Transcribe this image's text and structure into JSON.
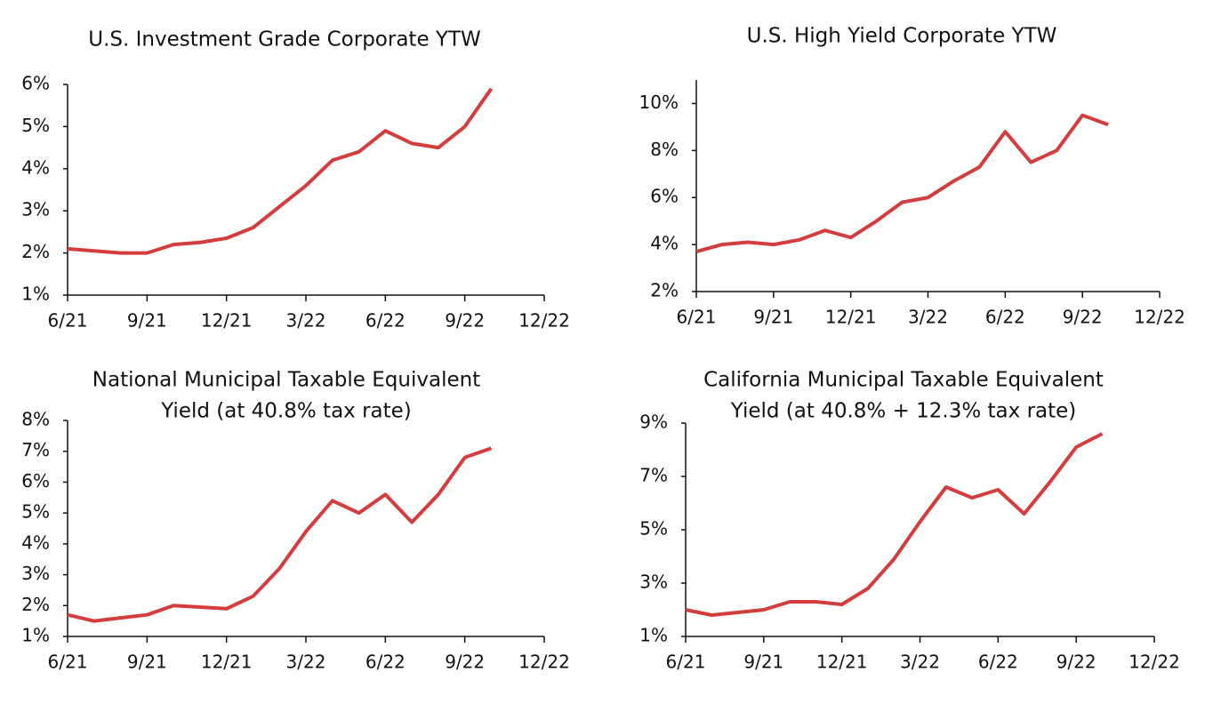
{
  "chart_data": [
    {
      "type": "line",
      "title": [
        "U.S. Investment Grade Corporate YTW"
      ],
      "x": [
        "2021-06",
        "2021-07",
        "2021-08",
        "2021-09",
        "2021-10",
        "2021-11",
        "2021-12",
        "2022-01",
        "2022-02",
        "2022-03",
        "2022-04",
        "2022-05",
        "2022-06",
        "2022-07",
        "2022-08",
        "2022-09",
        "2022-10"
      ],
      "series": [
        {
          "color": "#d43d3d",
          "values": [
            2.1,
            2.05,
            2.0,
            2.0,
            2.2,
            2.25,
            2.35,
            2.6,
            3.1,
            3.6,
            4.2,
            4.4,
            4.9,
            4.6,
            4.5,
            5.0,
            5.9
          ]
        }
      ],
      "xlim": [
        "2021-06",
        "2022-12"
      ],
      "xticks": [
        {
          "value": "2021-06",
          "label": "6/21"
        },
        {
          "value": "2021-09",
          "label": "9/21"
        },
        {
          "value": "2021-12",
          "label": "12/21"
        },
        {
          "value": "2022-03",
          "label": "3/22"
        },
        {
          "value": "2022-06",
          "label": "6/22"
        },
        {
          "value": "2022-09",
          "label": "9/22"
        },
        {
          "value": "2022-12",
          "label": "12/22"
        }
      ],
      "ylim": [
        1,
        6
      ],
      "yticks": [
        {
          "value": 1,
          "label": "1%"
        },
        {
          "value": 2,
          "label": "2%"
        },
        {
          "value": 3,
          "label": "3%"
        },
        {
          "value": 4,
          "label": "4%"
        },
        {
          "value": 5,
          "label": "5%"
        },
        {
          "value": 6,
          "label": "6%"
        }
      ]
    },
    {
      "type": "line",
      "title": [
        "U.S. High Yield Corporate YTW"
      ],
      "x": [
        "2021-06",
        "2021-07",
        "2021-08",
        "2021-09",
        "2021-10",
        "2021-11",
        "2021-12",
        "2022-01",
        "2022-02",
        "2022-03",
        "2022-04",
        "2022-05",
        "2022-06",
        "2022-07",
        "2022-08",
        "2022-09",
        "2022-10"
      ],
      "series": [
        {
          "color": "#d43d3d",
          "values": [
            3.7,
            4.0,
            4.1,
            4.0,
            4.2,
            4.6,
            4.3,
            5.0,
            5.8,
            6.0,
            6.7,
            7.3,
            8.8,
            7.5,
            8.0,
            9.5,
            9.1
          ]
        }
      ],
      "xlim": [
        "2021-06",
        "2022-12"
      ],
      "xticks": [
        {
          "value": "2021-06",
          "label": "6/21"
        },
        {
          "value": "2021-09",
          "label": "9/21"
        },
        {
          "value": "2021-12",
          "label": "12/21"
        },
        {
          "value": "2022-03",
          "label": "3/22"
        },
        {
          "value": "2022-06",
          "label": "6/22"
        },
        {
          "value": "2022-09",
          "label": "9/22"
        },
        {
          "value": "2022-12",
          "label": "12/22"
        }
      ],
      "ylim": [
        2,
        11
      ],
      "yticks": [
        {
          "value": 2,
          "label": "2%"
        },
        {
          "value": 4,
          "label": "4%"
        },
        {
          "value": 6,
          "label": "6%"
        },
        {
          "value": 8,
          "label": "8%"
        },
        {
          "value": 10,
          "label": "10%"
        }
      ]
    },
    {
      "type": "line",
      "title": [
        "National Municipal Taxable Equivalent",
        "Yield (at 40.8% tax rate)"
      ],
      "x": [
        "2021-06",
        "2021-07",
        "2021-08",
        "2021-09",
        "2021-10",
        "2021-11",
        "2021-12",
        "2022-01",
        "2022-02",
        "2022-03",
        "2022-04",
        "2022-05",
        "2022-06",
        "2022-07",
        "2022-08",
        "2022-09",
        "2022-10"
      ],
      "series": [
        {
          "color": "#d43d3d",
          "values": [
            1.7,
            1.5,
            1.6,
            1.7,
            2.0,
            1.95,
            1.9,
            2.3,
            3.2,
            4.4,
            5.4,
            5.0,
            5.6,
            4.7,
            5.6,
            6.8,
            7.1
          ]
        }
      ],
      "xlim": [
        "2021-06",
        "2022-12"
      ],
      "xticks": [
        {
          "value": "2021-06",
          "label": "6/21"
        },
        {
          "value": "2021-09",
          "label": "9/21"
        },
        {
          "value": "2021-12",
          "label": "12/21"
        },
        {
          "value": "2022-03",
          "label": "3/22"
        },
        {
          "value": "2022-06",
          "label": "6/22"
        },
        {
          "value": "2022-09",
          "label": "9/22"
        },
        {
          "value": "2022-12",
          "label": "12/22"
        }
      ],
      "ylim": [
        1,
        8
      ],
      "yticks": [
        {
          "value": 1,
          "label": "1%"
        },
        {
          "value": 2,
          "label": "2%"
        },
        {
          "value": 3,
          "label": "3%"
        },
        {
          "value": 4,
          "label": "4%"
        },
        {
          "value": 5,
          "label": "5%"
        },
        {
          "value": 6,
          "label": "6%"
        },
        {
          "value": 7,
          "label": "7%"
        },
        {
          "value": 8,
          "label": "8%"
        }
      ]
    },
    {
      "type": "line",
      "title": [
        "California Municipal Taxable Equivalent",
        "Yield (at 40.8% + 12.3% tax rate)"
      ],
      "x": [
        "2021-06",
        "2021-07",
        "2021-08",
        "2021-09",
        "2021-10",
        "2021-11",
        "2021-12",
        "2022-01",
        "2022-02",
        "2022-03",
        "2022-04",
        "2022-05",
        "2022-06",
        "2022-07",
        "2022-08",
        "2022-09",
        "2022-10"
      ],
      "series": [
        {
          "color": "#d43d3d",
          "values": [
            2.0,
            1.8,
            1.9,
            2.0,
            2.3,
            2.3,
            2.2,
            2.8,
            3.9,
            5.3,
            6.6,
            6.2,
            6.5,
            5.6,
            6.8,
            8.1,
            8.6
          ]
        }
      ],
      "xlim": [
        "2021-06",
        "2022-12"
      ],
      "xticks": [
        {
          "value": "2021-06",
          "label": "6/21"
        },
        {
          "value": "2021-09",
          "label": "9/21"
        },
        {
          "value": "2021-12",
          "label": "12/21"
        },
        {
          "value": "2022-03",
          "label": "3/22"
        },
        {
          "value": "2022-06",
          "label": "6/22"
        },
        {
          "value": "2022-09",
          "label": "9/22"
        },
        {
          "value": "2022-12",
          "label": "12/22"
        }
      ],
      "ylim": [
        1,
        9
      ],
      "yticks": [
        {
          "value": 1,
          "label": "1%"
        },
        {
          "value": 3,
          "label": "3%"
        },
        {
          "value": 5,
          "label": "5%"
        },
        {
          "value": 7,
          "label": "7%"
        },
        {
          "value": 9,
          "label": "9%"
        }
      ]
    }
  ]
}
